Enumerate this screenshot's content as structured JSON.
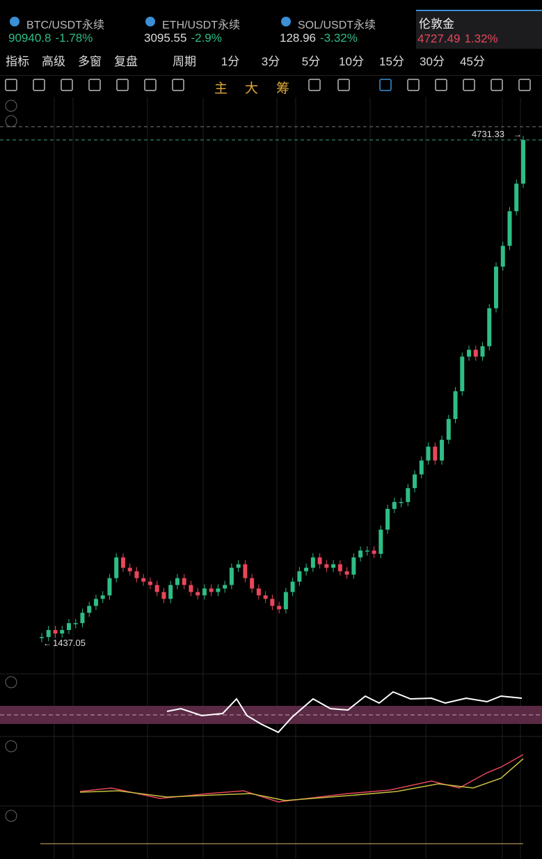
{
  "tickers": [
    {
      "symbol": "BTC/USDT永续",
      "price": 90940.8,
      "change": "-1.78%"
    },
    {
      "symbol": "ETH/USDT永续",
      "price": 3095.55,
      "change": "-2.9%"
    },
    {
      "symbol": "SOL/USDT永续",
      "price": 128.96,
      "change": "-3.32%"
    },
    {
      "symbol": "伦敦金",
      "price": 4727.49,
      "change": "1.32%"
    }
  ],
  "toolbar": {
    "items": [
      "指标",
      "高级",
      "多窗",
      "复盘",
      "周期"
    ],
    "periods": [
      "1分",
      "3分",
      "5分",
      "10分",
      "15分",
      "30分",
      "45分"
    ]
  },
  "drawing_toolbar": {
    "labels": [
      "主",
      "大",
      "筹"
    ]
  },
  "chart": {
    "high_label": 4731.33,
    "low_label": 1437.05,
    "closes": [
      1473,
      1519,
      1496,
      1519,
      1564,
      1564,
      1632,
      1677,
      1723,
      1746,
      1859,
      1995,
      1927,
      1904,
      1859,
      1836,
      1814,
      1768,
      1723,
      1814,
      1859,
      1814,
      1768,
      1746,
      1791,
      1768,
      1791,
      1814,
      1927,
      1950,
      1859,
      1791,
      1746,
      1723,
      1677,
      1655,
      1768,
      1836,
      1904,
      1927,
      1995,
      1950,
      1927,
      1950,
      1904,
      1882,
      1995,
      2040,
      2040,
      2018,
      2177,
      2313,
      2358,
      2358,
      2449,
      2539,
      2630,
      2721,
      2630,
      2766,
      2902,
      3084,
      3311,
      3356,
      3311,
      3379,
      3628,
      3901,
      4037,
      4264,
      4445,
      4731
    ]
  }
}
